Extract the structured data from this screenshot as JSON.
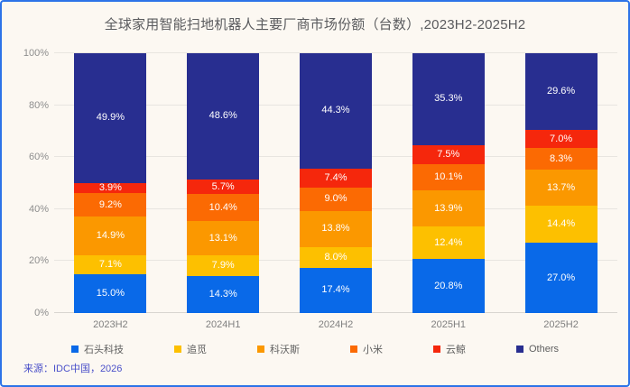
{
  "title": "全球家用智能扫地机器人主要厂商市场份额（台数）,2023H2-2025H2",
  "source": "来源：IDC中国，2026",
  "chart_data": {
    "type": "bar",
    "stacked": true,
    "title": "全球家用智能扫地机器人主要厂商市场份额（台数）,2023H2-2025H2",
    "categories": [
      "2023H2",
      "2024H1",
      "2024H2",
      "2025H1",
      "2025H2"
    ],
    "series": [
      {
        "name": "石头科技",
        "color": "#0969e8",
        "values": [
          15.0,
          14.3,
          17.4,
          20.8,
          27.0
        ]
      },
      {
        "name": "追觅",
        "color": "#fdc000",
        "values": [
          7.1,
          7.9,
          8.0,
          12.4,
          14.4
        ]
      },
      {
        "name": "科沃斯",
        "color": "#fb9800",
        "values": [
          14.9,
          13.1,
          13.8,
          13.9,
          13.7
        ]
      },
      {
        "name": "小米",
        "color": "#fb6a03",
        "values": [
          9.2,
          10.4,
          9.0,
          10.1,
          8.3
        ]
      },
      {
        "name": "云鲸",
        "color": "#f5270c",
        "values": [
          3.9,
          5.7,
          7.4,
          7.5,
          7.0
        ]
      },
      {
        "name": "Others",
        "color": "#282e90",
        "values": [
          49.9,
          48.6,
          44.3,
          35.3,
          29.6
        ]
      }
    ],
    "xlabel": "",
    "ylabel": "",
    "ylim": [
      0,
      100
    ],
    "yticks": [
      "0%",
      "20%",
      "40%",
      "60%",
      "80%",
      "100%"
    ],
    "grid": true,
    "legend_position": "bottom",
    "value_suffix": "%"
  }
}
